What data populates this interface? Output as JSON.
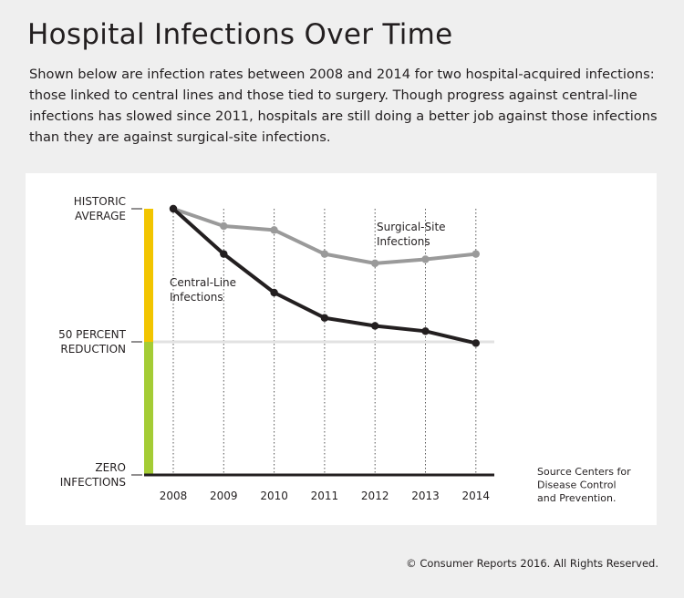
{
  "header": {
    "title": "Hospital Infections Over Time",
    "subtitle": "Shown below are infection rates between 2008 and 2014 for two hospital-acquired infections: those linked to central lines and those tied to surgery. Though progress against central-line infections has slowed since 2011, hospitals are still doing a better job against those infections than they are against surgical-site infections."
  },
  "footer": {
    "copyright": "© Consumer Reports 2016. All Rights Reserved."
  },
  "chart_data": {
    "type": "line",
    "x": [
      "2008",
      "2009",
      "2010",
      "2011",
      "2012",
      "2013",
      "2014"
    ],
    "ylim": [
      0,
      100
    ],
    "y_ticks": [
      {
        "value": 100,
        "lines": [
          "HISTORIC",
          "AVERAGE"
        ]
      },
      {
        "value": 50,
        "lines": [
          "50 PERCENT",
          "REDUCTION"
        ]
      },
      {
        "value": 0,
        "lines": [
          "ZERO",
          "INFECTIONS"
        ]
      }
    ],
    "series": [
      {
        "name": "Surgical-Site Infections",
        "label_lines": [
          "Surgical-Site",
          "Infections"
        ],
        "color": "#9a9a9a",
        "values": [
          100,
          93.5,
          92,
          83,
          79.5,
          81,
          83
        ]
      },
      {
        "name": "Central-Line Infections",
        "label_lines": [
          "Central-Line",
          "Infections"
        ],
        "color": "#231f20",
        "values": [
          100,
          83,
          68.5,
          59,
          56,
          54,
          49.5
        ]
      }
    ],
    "reference_line": {
      "value": 50,
      "color": "#e2e2e2"
    },
    "scale_bar": {
      "upper_color": "#f2c500",
      "lower_color": "#a4cc35"
    },
    "source_lines": [
      "Source Centers for",
      "Disease Control",
      "and Prevention."
    ]
  }
}
